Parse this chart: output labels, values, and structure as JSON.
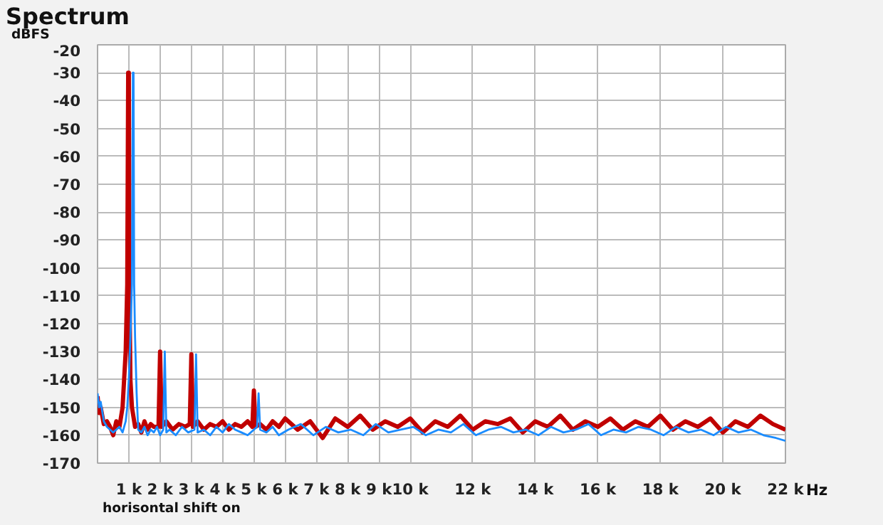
{
  "chart_data": {
    "type": "line",
    "title": "Spectrum",
    "ylabel": "dBFS",
    "xlabel": "Hz",
    "annotations": [
      "horisontal shift on"
    ],
    "xlim": [
      0,
      22000
    ],
    "ylim": [
      -170,
      -20
    ],
    "xticks": [
      {
        "value": 1000,
        "label": "1 k"
      },
      {
        "value": 2000,
        "label": "2 k"
      },
      {
        "value": 3000,
        "label": "3 k"
      },
      {
        "value": 4000,
        "label": "4 k"
      },
      {
        "value": 5000,
        "label": "5 k"
      },
      {
        "value": 6000,
        "label": "6 k"
      },
      {
        "value": 7000,
        "label": "7 k"
      },
      {
        "value": 8000,
        "label": "8 k"
      },
      {
        "value": 9000,
        "label": "9 k"
      },
      {
        "value": 10000,
        "label": "10 k"
      },
      {
        "value": 12000,
        "label": "12 k"
      },
      {
        "value": 14000,
        "label": "14 k"
      },
      {
        "value": 16000,
        "label": "16 k"
      },
      {
        "value": 18000,
        "label": "18 k"
      },
      {
        "value": 20000,
        "label": "20 k"
      },
      {
        "value": 22000,
        "label": "22 k"
      }
    ],
    "yticks": [
      -20,
      -30,
      -40,
      -50,
      -60,
      -70,
      -80,
      -90,
      -100,
      -110,
      -120,
      -130,
      -140,
      -150,
      -160,
      -170
    ],
    "grid": true,
    "line_style": "solid",
    "series": [
      {
        "color": "#c00000",
        "x": [
          0,
          50,
          100,
          200,
          300,
          400,
          500,
          600,
          700,
          800,
          850,
          900,
          950,
          980,
          1000,
          1020,
          1050,
          1100,
          1200,
          1300,
          1400,
          1500,
          1600,
          1700,
          1800,
          1950,
          2000,
          2050,
          2200,
          2400,
          2600,
          2800,
          2950,
          3000,
          3050,
          3200,
          3400,
          3600,
          3800,
          4000,
          4200,
          4400,
          4600,
          4800,
          4950,
          5000,
          5050,
          5200,
          5400,
          5600,
          5800,
          6000,
          6400,
          6800,
          7200,
          7600,
          8000,
          8400,
          8800,
          9200,
          9600,
          10000,
          10400,
          10800,
          11200,
          11600,
          12000,
          12400,
          12800,
          13200,
          13600,
          14000,
          14400,
          14800,
          15200,
          15600,
          16000,
          16400,
          16800,
          17200,
          17600,
          18000,
          18400,
          18800,
          19200,
          19600,
          20000,
          20400,
          20800,
          21200,
          21600,
          22000
        ],
        "values": [
          -146,
          -152,
          -150,
          -156,
          -155,
          -157,
          -160,
          -155,
          -157,
          -150,
          -140,
          -130,
          -106,
          -30,
          -30,
          -106,
          -140,
          -150,
          -157,
          -156,
          -159,
          -155,
          -158,
          -156,
          -157,
          -157,
          -130,
          -157,
          -155,
          -158,
          -156,
          -157,
          -156,
          -131,
          -157,
          -155,
          -158,
          -156,
          -157,
          -155,
          -158,
          -156,
          -157,
          -155,
          -157,
          -144,
          -157,
          -156,
          -158,
          -155,
          -157,
          -154,
          -158,
          -155,
          -161,
          -154,
          -157,
          -153,
          -158,
          -155,
          -157,
          -154,
          -159,
          -155,
          -157,
          -153,
          -158,
          -155,
          -156,
          -154,
          -159,
          -155,
          -157,
          -153,
          -158,
          -155,
          -157,
          -154,
          -158,
          -155,
          -157,
          -153,
          -158,
          -155,
          -157,
          -154,
          -159,
          -155,
          -157,
          -153,
          -156,
          -158
        ]
      },
      {
        "color": "#1a8cff",
        "x": [
          0,
          50,
          100,
          200,
          300,
          400,
          500,
          600,
          700,
          800,
          900,
          950,
          1000,
          1050,
          1100,
          1130,
          1150,
          1170,
          1200,
          1250,
          1300,
          1400,
          1500,
          1600,
          1700,
          1800,
          1900,
          2000,
          2100,
          2150,
          2200,
          2300,
          2500,
          2700,
          2900,
          3100,
          3150,
          3200,
          3400,
          3600,
          3800,
          4000,
          4200,
          4400,
          4600,
          4800,
          5000,
          5100,
          5150,
          5200,
          5400,
          5600,
          5800,
          6100,
          6500,
          6900,
          7300,
          7700,
          8100,
          8500,
          8900,
          9300,
          9700,
          10100,
          10500,
          10900,
          11300,
          11700,
          12100,
          12500,
          12900,
          13300,
          13700,
          14100,
          14500,
          14900,
          15300,
          15700,
          16100,
          16500,
          16900,
          17300,
          17700,
          18100,
          18500,
          18900,
          19300,
          19700,
          20100,
          20500,
          20900,
          21300,
          21700,
          22000
        ],
        "values": [
          -145,
          -150,
          -148,
          -155,
          -157,
          -158,
          -159,
          -158,
          -157,
          -159,
          -155,
          -150,
          -140,
          -125,
          -106,
          -30,
          -30,
          -106,
          -125,
          -145,
          -158,
          -159,
          -157,
          -160,
          -158,
          -159,
          -157,
          -160,
          -158,
          -130,
          -159,
          -158,
          -160,
          -157,
          -159,
          -158,
          -131,
          -159,
          -158,
          -160,
          -157,
          -159,
          -156,
          -158,
          -159,
          -160,
          -158,
          -157,
          -145,
          -158,
          -159,
          -157,
          -160,
          -158,
          -156,
          -160,
          -157,
          -159,
          -158,
          -160,
          -156,
          -159,
          -158,
          -157,
          -160,
          -158,
          -159,
          -156,
          -160,
          -158,
          -157,
          -159,
          -158,
          -160,
          -157,
          -159,
          -158,
          -156,
          -160,
          -158,
          -159,
          -157,
          -158,
          -160,
          -157,
          -159,
          -158,
          -160,
          -157,
          -159,
          -158,
          -160,
          -161,
          -162
        ]
      }
    ]
  }
}
